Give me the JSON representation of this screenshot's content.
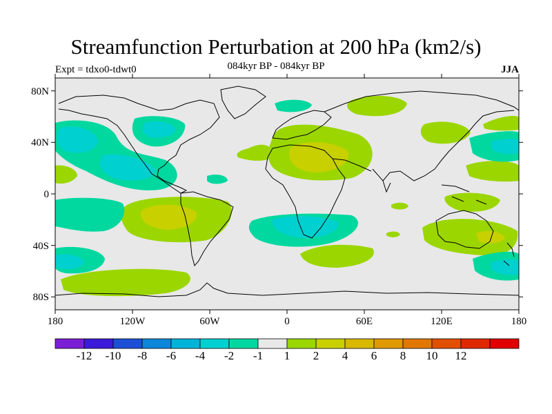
{
  "title": "Streamfunction Perturbation at 200 hPa (km2/s)",
  "subtitle": "084kyr BP - 084kyr BP",
  "experiment": "Expt = tdxo0-tdwt0",
  "season": "JJA",
  "lat_ticks": [
    "80N",
    "40N",
    "0",
    "40S",
    "80S"
  ],
  "lon_ticks": [
    "180",
    "120W",
    "60W",
    "0",
    "60E",
    "120E",
    "180"
  ],
  "colorbar": {
    "colors": [
      "#7a1fd6",
      "#3b1bd9",
      "#1c4fd6",
      "#0c86d8",
      "#00b4d9",
      "#00d0d0",
      "#00d8a0",
      "#e8e8e8",
      "#9bd600",
      "#c8d000",
      "#d8b800",
      "#e09a00",
      "#e07800",
      "#e05000",
      "#e02800",
      "#e00000"
    ],
    "labels": [
      "-12",
      "-10",
      "-8",
      "-6",
      "-4",
      "-2",
      "-1",
      "1",
      "2",
      "4",
      "6",
      "8",
      "10",
      "12"
    ]
  },
  "palette": {
    "neutral": "#e8e8e8",
    "pos1": "#9bd600",
    "pos2": "#c8d000",
    "neg1": "#00d8a0",
    "neg2": "#00d0d0"
  }
}
